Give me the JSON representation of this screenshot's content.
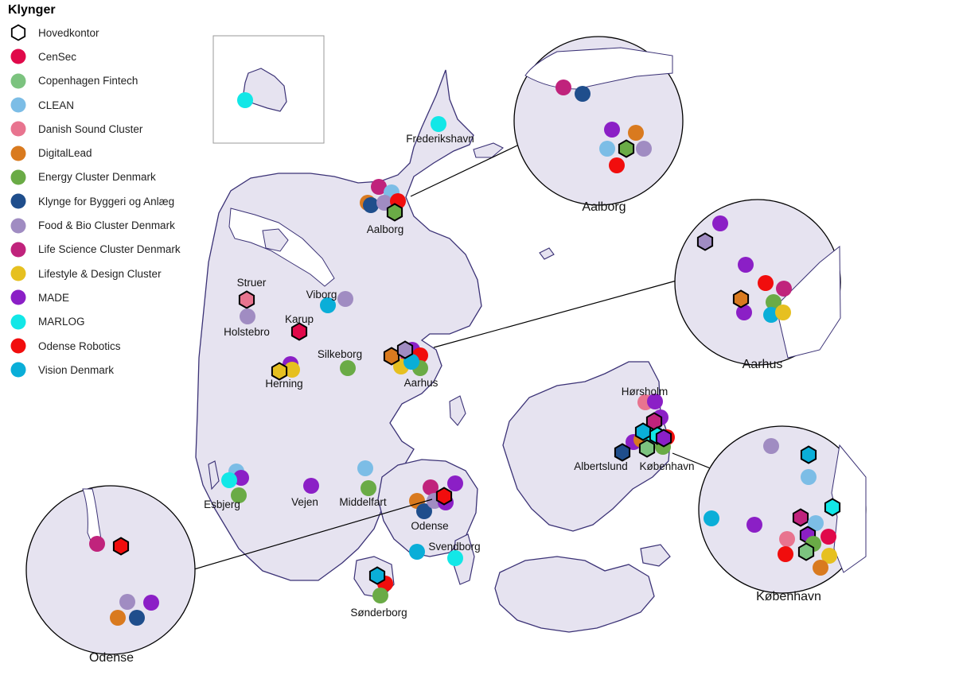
{
  "legend": {
    "title": "Klynger",
    "items": [
      {
        "name": "Hovedkontor",
        "color": "#ffffff",
        "shape": "hexagon"
      },
      {
        "name": "CenSec",
        "color": "#e0094a"
      },
      {
        "name": "Copenhagen Fintech",
        "color": "#7cc37f"
      },
      {
        "name": "CLEAN",
        "color": "#7cbde6"
      },
      {
        "name": "Danish Sound Cluster",
        "color": "#e8748f"
      },
      {
        "name": "DigitalLead",
        "color": "#d97a1f"
      },
      {
        "name": "Energy Cluster Denmark",
        "color": "#6aab46"
      },
      {
        "name": "Klynge for Byggeri og Anlæg",
        "color": "#1f4e8c"
      },
      {
        "name": "Food & Bio Cluster Denmark",
        "color": "#a08cc2"
      },
      {
        "name": "Life Science Cluster Denmark",
        "color": "#c0237c"
      },
      {
        "name": "Lifestyle & Design Cluster",
        "color": "#e6c020"
      },
      {
        "name": "MADE",
        "color": "#8b1fc6"
      },
      {
        "name": "MARLOG",
        "color": "#12e7e7"
      },
      {
        "name": "Odense Robotics",
        "color": "#f10d0d"
      },
      {
        "name": "Vision Denmark",
        "color": "#0aaed8"
      }
    ]
  },
  "cities": [
    "Frederikshavn",
    "Aalborg",
    "Struer",
    "Viborg",
    "Holstebro",
    "Karup",
    "Silkeborg",
    "Herning",
    "Aarhus",
    "Hørsholm",
    "Albertslund",
    "København",
    "Esbjerg",
    "Vejen",
    "Middelfart",
    "Odense",
    "Svendborg",
    "Sønderborg"
  ],
  "zooms": [
    "Aalborg",
    "Aarhus",
    "København",
    "Odense"
  ]
}
